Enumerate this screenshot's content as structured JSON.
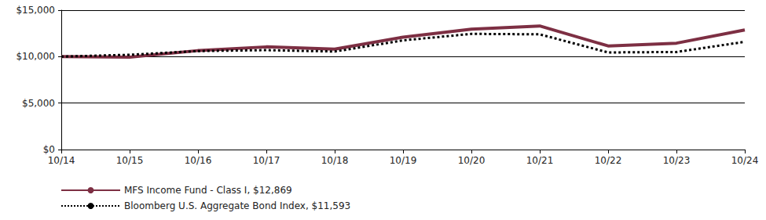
{
  "chart_data": {
    "type": "line",
    "categories": [
      "10/14",
      "10/15",
      "10/16",
      "10/17",
      "10/18",
      "10/19",
      "10/20",
      "10/21",
      "10/22",
      "10/23",
      "10/24"
    ],
    "series": [
      {
        "name": "MFS Income Fund - Class I, $12,869",
        "color": "#7d2f43",
        "line_style": "solid",
        "values": [
          10000,
          9950,
          10650,
          11050,
          10800,
          12100,
          12950,
          13300,
          11150,
          11450,
          12869
        ]
      },
      {
        "name": "Bloomberg U.S. Aggregate Bond Index, $11,593",
        "color": "#000000",
        "line_style": "dotted",
        "values": [
          10000,
          10200,
          10600,
          10700,
          10550,
          11750,
          12450,
          12400,
          10450,
          10500,
          11593
        ]
      }
    ],
    "ylim": [
      0,
      15000
    ],
    "yticks": [
      {
        "value": 0,
        "label": "$0"
      },
      {
        "value": 5000,
        "label": "$5,000"
      },
      {
        "value": 10000,
        "label": "$10,000"
      },
      {
        "value": 15000,
        "label": "$15,000"
      }
    ],
    "grid": true,
    "legend": "bottom-left"
  }
}
